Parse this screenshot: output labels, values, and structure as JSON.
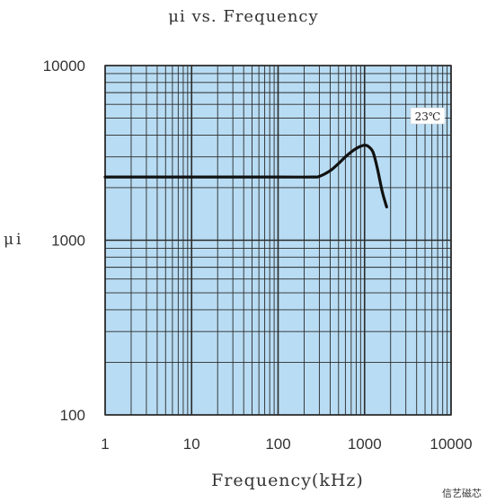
{
  "chart_data": {
    "type": "line",
    "title": "μi  vs. Frequency",
    "xlabel": "Frequency(kHz)",
    "ylabel": "μi",
    "x_scale": "log",
    "y_scale": "log",
    "xlim": [
      1,
      10000
    ],
    "ylim": [
      100,
      10000
    ],
    "x_ticks": [
      1,
      10,
      100,
      1000,
      10000
    ],
    "x_tick_labels": [
      "1",
      "10",
      "100",
      "1000",
      "10000"
    ],
    "y_ticks": [
      100,
      1000,
      10000
    ],
    "y_tick_labels": [
      "100",
      "1000",
      "10000"
    ],
    "grid": true,
    "annotation": "23℃",
    "series": [
      {
        "x": [
          1,
          10,
          100,
          250,
          300,
          400,
          500,
          600,
          700,
          800,
          900,
          1000,
          1100,
          1250,
          1400,
          1600,
          1800
        ],
        "y": [
          2300,
          2300,
          2300,
          2300,
          2320,
          2500,
          2750,
          3000,
          3200,
          3350,
          3450,
          3500,
          3450,
          3200,
          2600,
          1900,
          1550
        ]
      }
    ],
    "colors": {
      "plot_bg": "#b8dcf3",
      "grid": "#2a2a2a",
      "line": "#111111"
    }
  },
  "watermark": "信艺磁芯"
}
